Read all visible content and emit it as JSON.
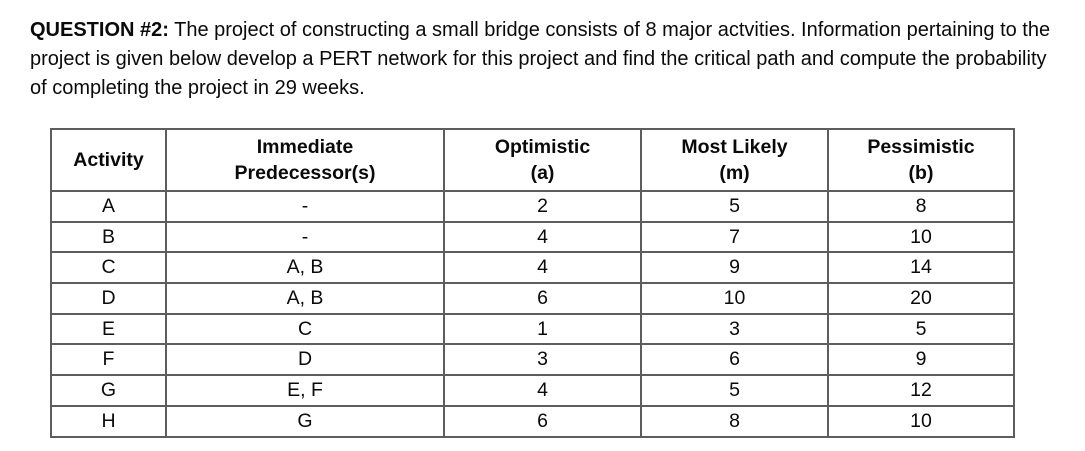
{
  "question": {
    "label": "QUESTION #2:",
    "body": "The project of constructing a small bridge consists of 8 major actvities. Information pertaining to the project is given below develop a PERT network for this project and find the critical path and compute the probability of completing the project in 29 weeks."
  },
  "table": {
    "columns": [
      {
        "title": "Activity",
        "subtitle": ""
      },
      {
        "title": "Immediate",
        "subtitle": "Predecessor(s)"
      },
      {
        "title": "Optimistic",
        "subtitle": "(a)"
      },
      {
        "title": "Most Likely",
        "subtitle": "(m)"
      },
      {
        "title": "Pessimistic",
        "subtitle": "(b)"
      }
    ],
    "rows": [
      [
        "A",
        "-",
        "2",
        "5",
        "8"
      ],
      [
        "B",
        "-",
        "4",
        "7",
        "10"
      ],
      [
        "C",
        "A, B",
        "4",
        "9",
        "14"
      ],
      [
        "D",
        "A, B",
        "6",
        "10",
        "20"
      ],
      [
        "E",
        "C",
        "1",
        "3",
        "5"
      ],
      [
        "F",
        "D",
        "3",
        "6",
        "9"
      ],
      [
        "G",
        "E, F",
        "4",
        "5",
        "12"
      ],
      [
        "H",
        "G",
        "6",
        "8",
        "10"
      ]
    ]
  },
  "colors": {
    "page_background": "#ffffff",
    "text": "#0a0a0a",
    "table_border": "#5d5d5d"
  }
}
